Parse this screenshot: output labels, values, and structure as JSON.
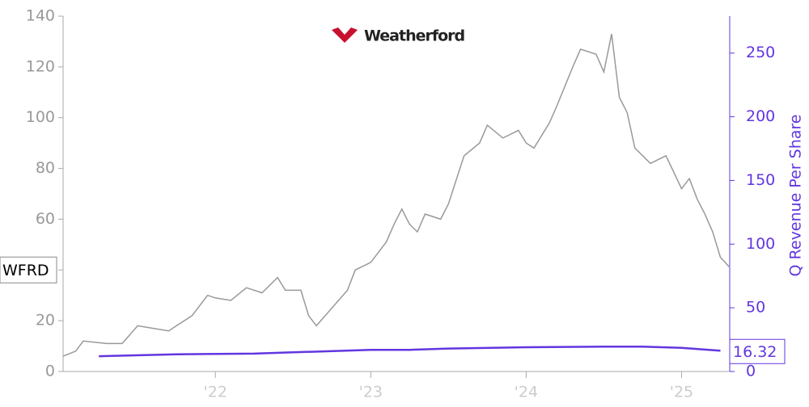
{
  "chart_data": {
    "type": "line",
    "logo_text": "Weatherford",
    "ticker_label": "WFRD",
    "y2_label": "Q Revenue Per Share",
    "xlim": [
      2021.02,
      2025.31
    ],
    "xticks": [
      {
        "value": 2022,
        "label": "'22"
      },
      {
        "value": 2023,
        "label": "'23"
      },
      {
        "value": 2024,
        "label": "'24"
      },
      {
        "value": 2025,
        "label": "'25"
      }
    ],
    "ylim": [
      0,
      140
    ],
    "yticks": [
      0,
      20,
      40,
      60,
      80,
      100,
      120,
      140
    ],
    "y2lim": [
      0,
      279
    ],
    "y2ticks": [
      0,
      50,
      100,
      150,
      200,
      250
    ],
    "series": [
      {
        "name": "WFRD",
        "color": "#999999",
        "x": [
          2021.02,
          2021.1,
          2021.15,
          2021.3,
          2021.4,
          2021.5,
          2021.6,
          2021.7,
          2021.75,
          2021.85,
          2021.95,
          2022.0,
          2022.1,
          2022.2,
          2022.3,
          2022.4,
          2022.45,
          2022.55,
          2022.6,
          2022.65,
          2022.75,
          2022.85,
          2022.9,
          2023.0,
          2023.1,
          2023.15,
          2023.2,
          2023.25,
          2023.3,
          2023.35,
          2023.45,
          2023.5,
          2023.6,
          2023.7,
          2023.75,
          2023.85,
          2023.95,
          2024.0,
          2024.05,
          2024.15,
          2024.2,
          2024.3,
          2024.35,
          2024.45,
          2024.5,
          2024.55,
          2024.6,
          2024.65,
          2024.7,
          2024.8,
          2024.9,
          2025.0,
          2025.05,
          2025.1,
          2025.15,
          2025.2,
          2025.25,
          2025.31
        ],
        "values": [
          6,
          8,
          12,
          11,
          11,
          18,
          17,
          16,
          18,
          22,
          30,
          29,
          28,
          33,
          31,
          37,
          32,
          32,
          22,
          18,
          25,
          32,
          40,
          43,
          51,
          58,
          64,
          58,
          55,
          62,
          60,
          66,
          85,
          90,
          97,
          92,
          95,
          90,
          88,
          98,
          105,
          120,
          127,
          125,
          118,
          133,
          108,
          102,
          88,
          82,
          85,
          72,
          76,
          68,
          62,
          55,
          45,
          41
        ]
      },
      {
        "name": "Q Revenue Per Share",
        "color": "#6236e0",
        "axis": "y2",
        "x": [
          2021.25,
          2021.75,
          2022.25,
          2022.5,
          2023.0,
          2023.25,
          2023.5,
          2024.0,
          2024.5,
          2024.75,
          2025.0,
          2025.25
        ],
        "values": [
          12,
          13.5,
          14,
          15,
          17,
          17,
          18,
          19,
          19.5,
          19.5,
          18.5,
          16.32
        ],
        "value_labels": [
          null,
          null,
          null,
          null,
          null,
          null,
          null,
          null,
          null,
          null,
          null,
          "16.32"
        ]
      }
    ]
  }
}
